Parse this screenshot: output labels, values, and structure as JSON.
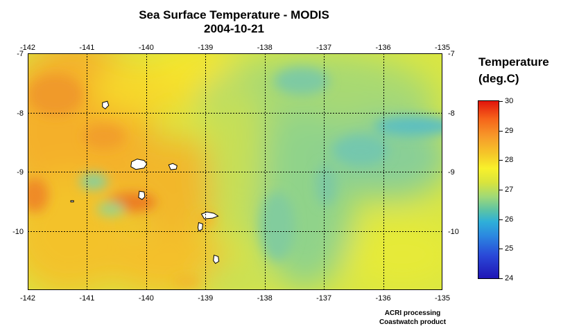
{
  "title": "Sea Surface Temperature - MODIS",
  "subtitle": "2004-10-21",
  "map": {
    "lon_range": [
      -142,
      -135
    ],
    "lat_range": [
      -11,
      -7
    ],
    "lon_ticks": [
      "-142",
      "-141",
      "-140",
      "-139",
      "-138",
      "-137",
      "-136",
      "-135"
    ],
    "lat_ticks": [
      "-7",
      "-8",
      "-9",
      "-10"
    ],
    "grid": "dotted lines at each integer degree",
    "islands_color": "#ffffff",
    "islands": [
      {
        "lon": -140.13,
        "lat": -8.88
      },
      {
        "lon": -139.55,
        "lat": -8.92
      },
      {
        "lon": -140.07,
        "lat": -9.4
      },
      {
        "lon": -140.68,
        "lat": -7.88
      },
      {
        "lon": -138.95,
        "lat": -9.75
      },
      {
        "lon": -139.08,
        "lat": -9.93
      },
      {
        "lon": -138.82,
        "lat": -10.48
      },
      {
        "lon": -141.25,
        "lat": -9.5
      }
    ]
  },
  "legend": {
    "title_line1": "Temperature",
    "title_line2": "(deg.C)",
    "min": 24,
    "max": 30,
    "labels": [
      "30",
      "29",
      "28",
      "27",
      "26",
      "25",
      "24"
    ],
    "colors": {
      "min": "#1f15b5",
      "mid_low": "#2fb0d8",
      "mid": "#f8f12b",
      "mid_high": "#f79a2a",
      "max": "#e2150c"
    }
  },
  "credit": {
    "line1": "ACRI processing",
    "line2": "Coastwatch product"
  }
}
